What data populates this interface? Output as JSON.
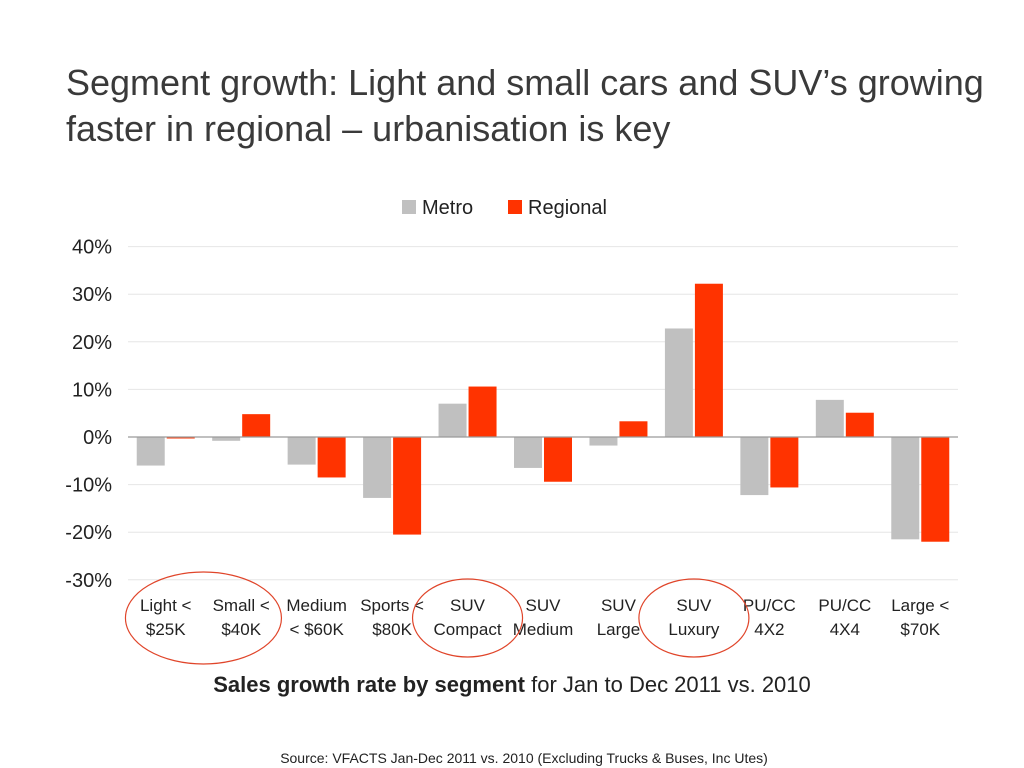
{
  "slide": {
    "title": "Segment growth: Light and small cars and SUV’s growing faster in regional – urbanisation is key",
    "subtitle_bold": "Sales growth rate by segment",
    "subtitle_rest": " for Jan to Dec 2011 vs. 2010",
    "source": "Source: VFACTS Jan-Dec 2011 vs. 2010 (Excluding Trucks & Buses, Inc Utes)"
  },
  "colors": {
    "metro": "#c0c0c0",
    "regional": "#ff3300",
    "highlight_circle": "#e0452a"
  },
  "chart_data": {
    "type": "bar",
    "categories": [
      [
        "Light <",
        "$25K"
      ],
      [
        "Small <",
        "$40K"
      ],
      [
        "Medium",
        "< $60K"
      ],
      [
        "Sports <",
        "$80K"
      ],
      [
        "SUV",
        "Compact"
      ],
      [
        "SUV",
        "Medium"
      ],
      [
        "SUV",
        "Large"
      ],
      [
        "SUV",
        "Luxury"
      ],
      [
        "PU/CC",
        "4X2"
      ],
      [
        "PU/CC",
        "4X4"
      ],
      [
        "Large <",
        "$70K"
      ]
    ],
    "series": [
      {
        "name": "Metro",
        "values": [
          -6.0,
          -0.8,
          -5.8,
          -12.8,
          7.0,
          -6.5,
          -1.8,
          22.8,
          -12.2,
          7.8,
          -21.5
        ]
      },
      {
        "name": "Regional",
        "values": [
          -0.3,
          4.8,
          -8.5,
          -20.5,
          10.6,
          -9.4,
          3.3,
          32.2,
          -10.6,
          5.1,
          -22.0
        ]
      }
    ],
    "yticks": [
      "40%",
      "30%",
      "20%",
      "10%",
      "0%",
      "-10%",
      "-20%",
      "-30%"
    ],
    "ylim": [
      -30,
      40
    ],
    "grid": true,
    "legend": "top-center",
    "highlighted_categories": [
      [
        0,
        1
      ],
      [
        4
      ],
      [
        7
      ]
    ]
  }
}
